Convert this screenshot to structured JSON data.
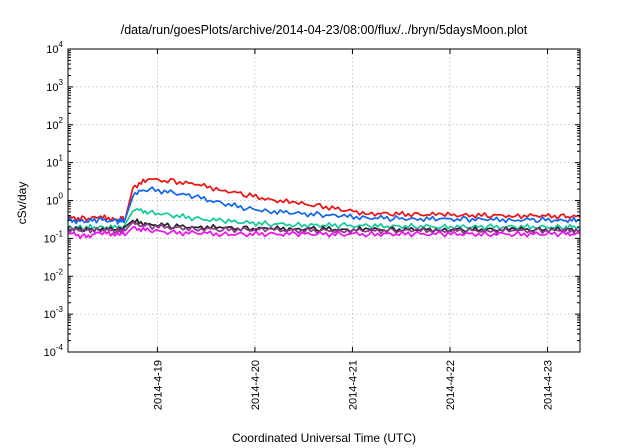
{
  "chart_data": {
    "type": "line",
    "title": "/data/run/goesPlots/archive/2014-04-23/08:00/flux/../bryn/5daysMoon.plot",
    "xlabel": "Coordinated Universal Time (UTC)",
    "ylabel": "cSv/day",
    "yscale": "log",
    "ylim": [
      0.0001,
      10000
    ],
    "xlim": [
      "2014-04-18 02:00",
      "2014-04-23 08:00"
    ],
    "grid": true,
    "legend": "none",
    "x_ticks": [
      "2014-4-19",
      "2014-4-20",
      "2014-4-21",
      "2014-4-22",
      "2014-4-23"
    ],
    "y_ticks": [
      {
        "base": "10",
        "exp": "-4"
      },
      {
        "base": "10",
        "exp": "-3"
      },
      {
        "base": "10",
        "exp": "-2"
      },
      {
        "base": "10",
        "exp": "-1"
      },
      {
        "base": "10",
        "exp": "0"
      },
      {
        "base": "10",
        "exp": "1"
      },
      {
        "base": "10",
        "exp": "2"
      },
      {
        "base": "10",
        "exp": "3"
      },
      {
        "base": "10",
        "exp": "4"
      }
    ],
    "x_dates": [
      "2014-04-18 02:00",
      "2014-04-18 06:00",
      "2014-04-18 10:00",
      "2014-04-18 14:00",
      "2014-04-18 16:00",
      "2014-04-18 18:00",
      "2014-04-18 22:00",
      "2014-04-19 04:00",
      "2014-04-19 10:00",
      "2014-04-19 16:00",
      "2014-04-19 22:00",
      "2014-04-20 04:00",
      "2014-04-20 10:00",
      "2014-04-20 16:00",
      "2014-04-20 22:00",
      "2014-04-21 04:00",
      "2014-04-21 10:00",
      "2014-04-21 16:00",
      "2014-04-21 22:00",
      "2014-04-22 04:00",
      "2014-04-22 10:00",
      "2014-04-22 16:00",
      "2014-04-22 22:00",
      "2014-04-23 04:00",
      "2014-04-23 08:00"
    ],
    "series": [
      {
        "color": "#ee1111",
        "values": [
          0.35,
          0.33,
          0.36,
          0.32,
          0.34,
          2.3,
          3.6,
          3.2,
          2.6,
          1.9,
          1.4,
          1.05,
          0.85,
          0.72,
          0.55,
          0.46,
          0.44,
          0.43,
          0.42,
          0.41,
          0.4,
          0.4,
          0.39,
          0.38,
          0.37
        ]
      },
      {
        "color": "#1166ee",
        "values": [
          0.3,
          0.28,
          0.31,
          0.28,
          0.3,
          1.5,
          2.0,
          1.6,
          1.2,
          0.85,
          0.62,
          0.52,
          0.46,
          0.42,
          0.38,
          0.35,
          0.34,
          0.33,
          0.32,
          0.32,
          0.31,
          0.31,
          0.31,
          0.3,
          0.3
        ]
      },
      {
        "color": "#11cc99",
        "values": [
          0.2,
          0.19,
          0.2,
          0.19,
          0.2,
          0.58,
          0.5,
          0.4,
          0.33,
          0.29,
          0.26,
          0.24,
          0.23,
          0.22,
          0.22,
          0.21,
          0.21,
          0.21,
          0.2,
          0.2,
          0.2,
          0.2,
          0.2,
          0.2,
          0.2
        ]
      },
      {
        "color": "#222222",
        "values": [
          0.18,
          0.17,
          0.18,
          0.17,
          0.18,
          0.28,
          0.24,
          0.21,
          0.2,
          0.19,
          0.18,
          0.18,
          0.18,
          0.18,
          0.17,
          0.17,
          0.17,
          0.17,
          0.17,
          0.17,
          0.17,
          0.17,
          0.17,
          0.17,
          0.17
        ]
      },
      {
        "color": "#8b3a8b",
        "values": [
          0.17,
          0.16,
          0.17,
          0.16,
          0.17,
          0.24,
          0.21,
          0.19,
          0.18,
          0.17,
          0.17,
          0.17,
          0.16,
          0.16,
          0.16,
          0.16,
          0.16,
          0.16,
          0.16,
          0.16,
          0.16,
          0.16,
          0.16,
          0.16,
          0.16
        ]
      },
      {
        "color": "#ee11ee",
        "values": [
          0.14,
          0.11,
          0.14,
          0.13,
          0.14,
          0.19,
          0.16,
          0.14,
          0.14,
          0.13,
          0.13,
          0.13,
          0.13,
          0.13,
          0.13,
          0.13,
          0.13,
          0.13,
          0.13,
          0.13,
          0.13,
          0.13,
          0.13,
          0.13,
          0.13
        ]
      }
    ]
  }
}
